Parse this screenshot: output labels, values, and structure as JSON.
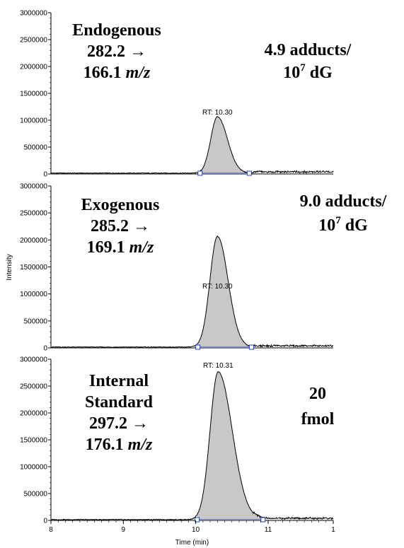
{
  "chart_data": [
    {
      "type": "area",
      "panel": "endogenous",
      "xlim": [
        8,
        11.9
      ],
      "ylim": [
        0,
        3000000
      ],
      "yticks": [
        "0",
        "500000",
        "1000000",
        "1500000",
        "2000000",
        "2500000",
        "3000000"
      ],
      "rt_label": "RT: 10.30",
      "peak": {
        "rt": 10.3,
        "height": 1050000,
        "start": 10.06,
        "end": 10.74
      },
      "annotation_lines": [
        "Endogenous",
        "282.2 →",
        "166.1 ",
        "m/z"
      ],
      "quant_lines": [
        "4.9 adducts/",
        "10",
        "7",
        " dG"
      ]
    },
    {
      "type": "area",
      "panel": "exogenous",
      "xlim": [
        8,
        11.9
      ],
      "ylim": [
        0,
        3000000
      ],
      "yticks": [
        "0",
        "500000",
        "1000000",
        "1500000",
        "2000000",
        "2500000",
        "3000000"
      ],
      "rt_label": "RT: 10.30",
      "peak": {
        "rt": 10.3,
        "height": 2050000,
        "start": 10.03,
        "end": 10.77
      },
      "annotation_lines": [
        "Exogenous",
        "285.2 →",
        "169.1 ",
        "m/z"
      ],
      "quant_lines": [
        "9.0 adducts/",
        "10",
        "7",
        " dG"
      ]
    },
    {
      "type": "area",
      "panel": "internal-standard",
      "xlim": [
        8,
        11.9
      ],
      "ylim": [
        0,
        3000000
      ],
      "yticks": [
        "0",
        "500000",
        "1000000",
        "1500000",
        "2000000",
        "2500000",
        "3000000"
      ],
      "rt_label": "RT: 10.31",
      "peak": {
        "rt": 10.31,
        "height": 2750000,
        "start": 10.02,
        "end": 10.93
      },
      "annotation_lines": [
        "Internal",
        "Standard",
        "297.2 →",
        "176.1 ",
        "m/z"
      ],
      "quant_lines": [
        "20",
        "fmol"
      ]
    }
  ],
  "xticks": [
    "8",
    "9",
    "10",
    "11",
    "1"
  ],
  "xlabel": "Time (min)",
  "ylabel": "Intensity",
  "colors": {
    "fill": "#c8c8c8",
    "line": "#000000",
    "marker": "#1f3fbf"
  }
}
